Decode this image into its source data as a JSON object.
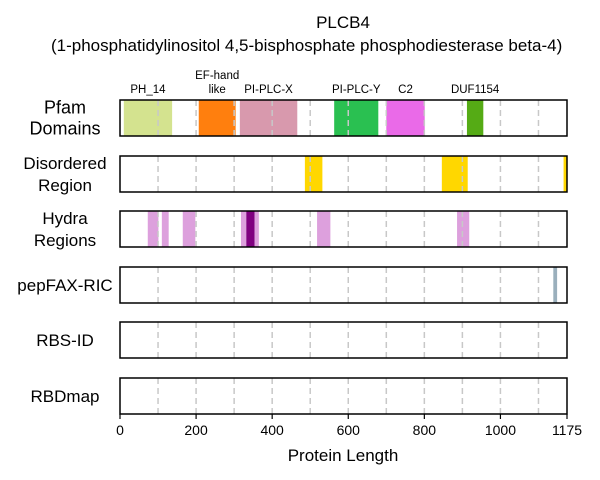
{
  "chart_data": {
    "type": "bar",
    "title": "PLCB4",
    "subtitle": "(1-phosphatidylinositol 4,5-bisphosphate phosphodiesterase beta-4)",
    "xlabel": "Protein Length",
    "xlim": [
      0,
      1175
    ],
    "xticks": [
      0,
      200,
      400,
      600,
      800,
      1000,
      1175
    ],
    "grid_lines": [
      100,
      200,
      300,
      400,
      500,
      600,
      700,
      800,
      900,
      1000,
      1100
    ],
    "rows": [
      {
        "label": "Pfam\nDomains",
        "segments": [
          {
            "name": "PH_14",
            "start": 10,
            "end": 137,
            "color": "#d4e38f"
          },
          {
            "name": "EF-hand\nlike",
            "start": 207,
            "end": 304,
            "color": "#ff7f0e"
          },
          {
            "name": "PI-PLC-X",
            "start": 315,
            "end": 466,
            "color": "#d899ad"
          },
          {
            "name": "PI-PLC-Y",
            "start": 563,
            "end": 679,
            "color": "#2ac051"
          },
          {
            "name": "C2",
            "start": 700,
            "end": 801,
            "color": "#ea6ae8"
          },
          {
            "name": "DUF1154",
            "start": 912,
            "end": 955,
            "color": "#55ab15"
          }
        ]
      },
      {
        "label": "Disordered\nRegion",
        "segments": [
          {
            "start": 486,
            "end": 532,
            "color": "#ffd700"
          },
          {
            "start": 846,
            "end": 914,
            "color": "#ffd700"
          },
          {
            "start": 1166,
            "end": 1175,
            "color": "#ffd700"
          }
        ]
      },
      {
        "label": "Hydra\nRegions",
        "segments": [
          {
            "start": 73,
            "end": 101,
            "color": "#dda0dd"
          },
          {
            "start": 110,
            "end": 128,
            "color": "#dda0dd"
          },
          {
            "start": 165,
            "end": 198,
            "color": "#dda0dd"
          },
          {
            "start": 318,
            "end": 332,
            "color": "#dda0dd"
          },
          {
            "start": 332,
            "end": 354,
            "color": "#800080"
          },
          {
            "start": 354,
            "end": 365,
            "color": "#dda0dd"
          },
          {
            "start": 518,
            "end": 553,
            "color": "#dda0dd"
          },
          {
            "start": 886,
            "end": 918,
            "color": "#dda0dd"
          }
        ]
      },
      {
        "label": "pepFAX-RIC",
        "segments": [
          {
            "start": 1139,
            "end": 1149,
            "color": "#9aafbc"
          }
        ]
      },
      {
        "label": "RBS-ID",
        "segments": []
      },
      {
        "label": "RBDmap",
        "segments": []
      }
    ]
  }
}
